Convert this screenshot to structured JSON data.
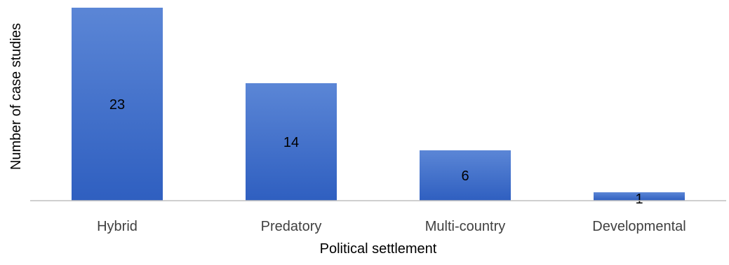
{
  "chart_data": {
    "type": "bar",
    "categories": [
      "Hybrid",
      "Predatory",
      "Multi-country",
      "Developmental"
    ],
    "values": [
      23,
      14,
      6,
      1
    ],
    "data_labels": [
      "23",
      "14",
      "6",
      "1"
    ],
    "xlabel": "Political settlement",
    "ylabel": "Number of case studies",
    "ylim": [
      0,
      23
    ],
    "grid": false,
    "legend": "none",
    "colors": {
      "bar_top": "#5b86d6",
      "bar_bottom": "#2f5fc0",
      "axis": "#bfbfbf",
      "text": "#000000",
      "tick_text": "#404040"
    }
  }
}
